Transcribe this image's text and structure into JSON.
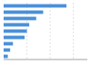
{
  "chart_data": {
    "type": "bar",
    "orientation": "horizontal",
    "categories": [
      null,
      null,
      null,
      null,
      null,
      null,
      null,
      null,
      null
    ],
    "values": [
      13.5,
      8.5,
      7.0,
      5.5,
      5.0,
      4.5,
      2.0,
      1.4,
      0.9
    ],
    "color": "#4a90d9",
    "xlim": [
      0,
      18
    ],
    "xticks": [
      5,
      10,
      15
    ],
    "grid": true,
    "tick_labels": false
  }
}
